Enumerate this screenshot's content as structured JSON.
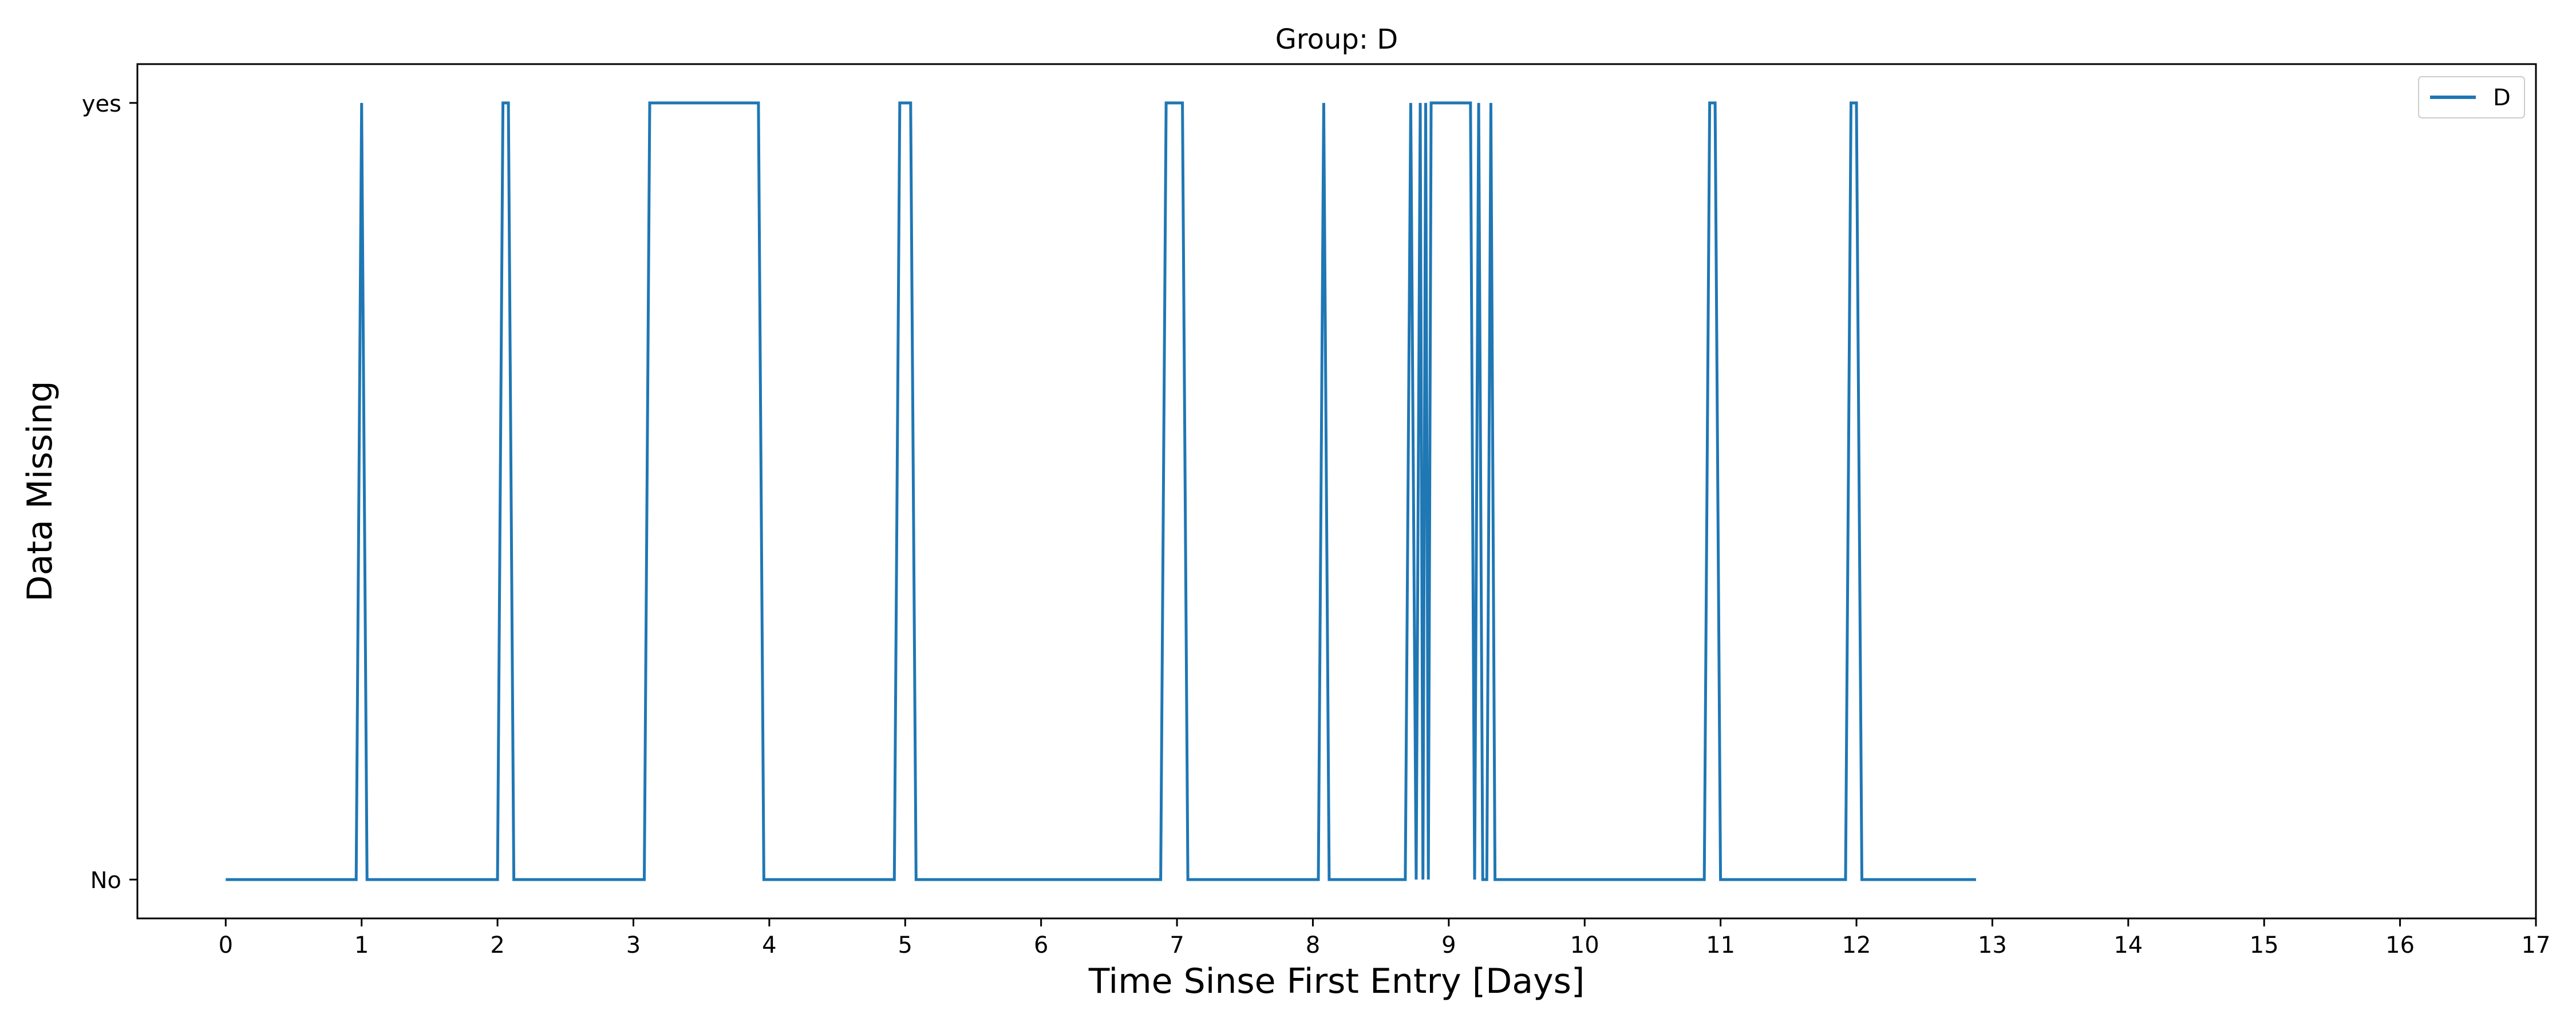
{
  "chart_data": {
    "type": "line",
    "title": "Group: D",
    "xlabel": "Time Sinse First Entry [Days]",
    "ylabel": "Data Missing",
    "xlim": [
      -0.65,
      17
    ],
    "ylim": [
      -0.05,
      1.05
    ],
    "xticks": [
      0,
      1,
      2,
      3,
      4,
      5,
      6,
      7,
      8,
      9,
      10,
      11,
      12,
      13,
      14,
      15,
      16,
      17
    ],
    "yticks": [
      0,
      1
    ],
    "ytick_labels": [
      "No",
      "yes"
    ],
    "grid": false,
    "legend_position": "top-right",
    "color": "#1f77b4",
    "series": [
      {
        "name": "D",
        "x": [
          0,
          0.96,
          1.0,
          1.04,
          2.0,
          2.04,
          2.08,
          2.12,
          3.08,
          3.12,
          3.92,
          3.96,
          4.92,
          4.96,
          5.04,
          5.08,
          6.88,
          6.92,
          7.04,
          7.08,
          8.04,
          8.08,
          8.12,
          8.68,
          8.72,
          8.76,
          8.79,
          8.81,
          8.83,
          8.85,
          8.87,
          8.9,
          9.16,
          9.19,
          9.22,
          9.25,
          9.28,
          9.31,
          9.34,
          10.88,
          10.92,
          10.96,
          11.0,
          11.92,
          11.96,
          12.0,
          12.04,
          12.88
        ],
        "y": [
          0,
          0,
          1,
          0,
          0,
          1,
          1,
          0,
          0,
          1,
          1,
          0,
          0,
          1,
          1,
          0,
          0,
          1,
          1,
          0,
          0,
          1,
          0,
          0,
          1,
          0,
          1,
          0,
          1,
          0,
          1,
          1,
          1,
          0,
          1,
          0,
          0,
          1,
          0,
          0,
          1,
          1,
          0,
          0,
          1,
          1,
          0,
          0
        ]
      }
    ]
  }
}
